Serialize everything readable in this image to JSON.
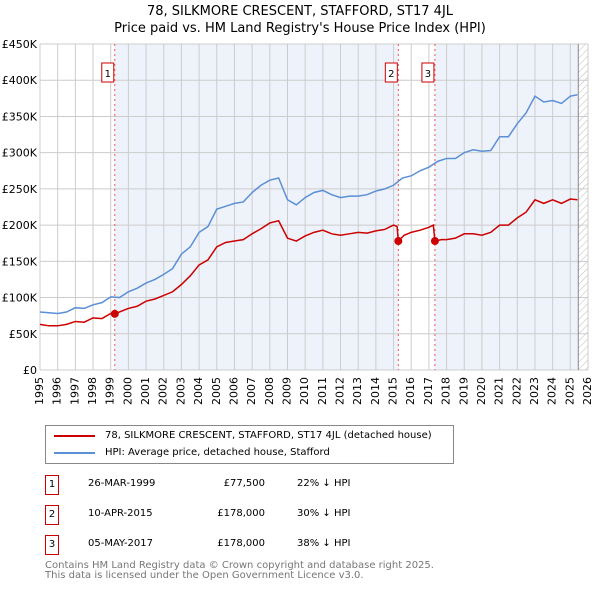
{
  "title": "78, SILKMORE CRESCENT, STAFFORD, ST17 4JL",
  "subtitle": "Price paid vs. HM Land Registry's House Price Index (HPI)",
  "chart_data": {
    "type": "line",
    "ylim": [
      0,
      450000
    ],
    "xlim": [
      1995,
      2026
    ],
    "yticks": [
      0,
      50000,
      100000,
      150000,
      200000,
      250000,
      300000,
      350000,
      400000,
      450000
    ],
    "ytick_labels": [
      "£0",
      "£50K",
      "£100K",
      "£150K",
      "£200K",
      "£250K",
      "£300K",
      "£350K",
      "£400K",
      "£450K"
    ],
    "xticks": [
      1995,
      1996,
      1997,
      1998,
      1999,
      2000,
      2001,
      2002,
      2003,
      2004,
      2005,
      2006,
      2007,
      2008,
      2009,
      2010,
      2011,
      2012,
      2013,
      2014,
      2015,
      2016,
      2017,
      2018,
      2019,
      2020,
      2021,
      2022,
      2023,
      2024,
      2025,
      2026
    ],
    "colors": {
      "property": "#cc0000",
      "hpi": "#5b8fd6",
      "shade": "#eef3fb"
    },
    "series": [
      {
        "name": "78, SILKMORE CRESCENT, STAFFORD, ST17 4JL (detached house)",
        "x": [
          1995,
          1995.5,
          1996,
          1996.5,
          1997,
          1997.5,
          1998,
          1998.5,
          1999,
          1999.23,
          2000,
          2000.5,
          2001,
          2001.5,
          2002,
          2002.5,
          2003,
          2003.5,
          2004,
          2004.5,
          2005,
          2005.5,
          2006,
          2006.5,
          2007,
          2007.5,
          2008,
          2008.5,
          2009,
          2009.5,
          2010,
          2010.5,
          2011,
          2011.5,
          2012,
          2012.5,
          2013,
          2013.5,
          2014,
          2014.5,
          2015,
          2015.2,
          2015.27,
          2015.6,
          2016,
          2016.5,
          2017,
          2017.25,
          2017.34,
          2017.7,
          2018,
          2018.5,
          2019,
          2019.5,
          2020,
          2020.5,
          2021,
          2021.5,
          2022,
          2022.5,
          2023,
          2023.5,
          2024,
          2024.5,
          2025,
          2025.4
        ],
        "y": [
          63000,
          61000,
          61000,
          63000,
          67000,
          66000,
          72000,
          71000,
          78000,
          77500,
          85000,
          88000,
          95000,
          98000,
          103000,
          108000,
          118000,
          130000,
          145000,
          152000,
          170000,
          176000,
          178000,
          180000,
          188000,
          195000,
          203000,
          206000,
          182000,
          178000,
          185000,
          190000,
          193000,
          188000,
          186000,
          188000,
          190000,
          189000,
          192000,
          194000,
          200000,
          198000,
          178000,
          186000,
          190000,
          193000,
          197000,
          200000,
          178000,
          180000,
          180000,
          182000,
          188000,
          188000,
          186000,
          190000,
          200000,
          200000,
          210000,
          218000,
          235000,
          230000,
          235000,
          230000,
          236000,
          235000
        ]
      },
      {
        "name": "HPI: Average price, detached house, Stafford",
        "x": [
          1995,
          1995.5,
          1996,
          1996.5,
          1997,
          1997.5,
          1998,
          1998.5,
          1999,
          1999.5,
          2000,
          2000.5,
          2001,
          2001.5,
          2002,
          2002.5,
          2003,
          2003.5,
          2004,
          2004.5,
          2005,
          2005.5,
          2006,
          2006.5,
          2007,
          2007.5,
          2008,
          2008.5,
          2009,
          2009.5,
          2010,
          2010.5,
          2011,
          2011.5,
          2012,
          2012.5,
          2013,
          2013.5,
          2014,
          2014.5,
          2015,
          2015.5,
          2016,
          2016.5,
          2017,
          2017.5,
          2018,
          2018.5,
          2019,
          2019.5,
          2020,
          2020.5,
          2021,
          2021.5,
          2022,
          2022.5,
          2023,
          2023.5,
          2024,
          2024.5,
          2025,
          2025.4
        ],
        "y": [
          80000,
          79000,
          78000,
          80000,
          86000,
          85000,
          90000,
          93000,
          101000,
          100000,
          108000,
          113000,
          120000,
          125000,
          132000,
          140000,
          160000,
          170000,
          190000,
          198000,
          222000,
          226000,
          230000,
          232000,
          245000,
          255000,
          262000,
          265000,
          235000,
          228000,
          238000,
          245000,
          248000,
          242000,
          238000,
          240000,
          240000,
          242000,
          247000,
          250000,
          255000,
          265000,
          268000,
          275000,
          280000,
          288000,
          292000,
          292000,
          300000,
          304000,
          302000,
          303000,
          322000,
          322000,
          340000,
          355000,
          378000,
          370000,
          372000,
          368000,
          378000,
          380000
        ]
      }
    ],
    "sales": [
      {
        "label": "1",
        "x": 1999.23,
        "y": 77500
      },
      {
        "label": "2",
        "x": 2015.27,
        "y": 178000
      },
      {
        "label": "3",
        "x": 2017.34,
        "y": 178000
      }
    ]
  },
  "table": [
    {
      "num": "1",
      "date": "26-MAR-1999",
      "price": "£77,500",
      "hpi": "22% ↓ HPI"
    },
    {
      "num": "2",
      "date": "10-APR-2015",
      "price": "£178,000",
      "hpi": "30% ↓ HPI"
    },
    {
      "num": "3",
      "date": "05-MAY-2017",
      "price": "£178,000",
      "hpi": "38% ↓ HPI"
    }
  ],
  "footer": [
    "Contains HM Land Registry data © Crown copyright and database right 2025.",
    "This data is licensed under the Open Government Licence v3.0."
  ]
}
